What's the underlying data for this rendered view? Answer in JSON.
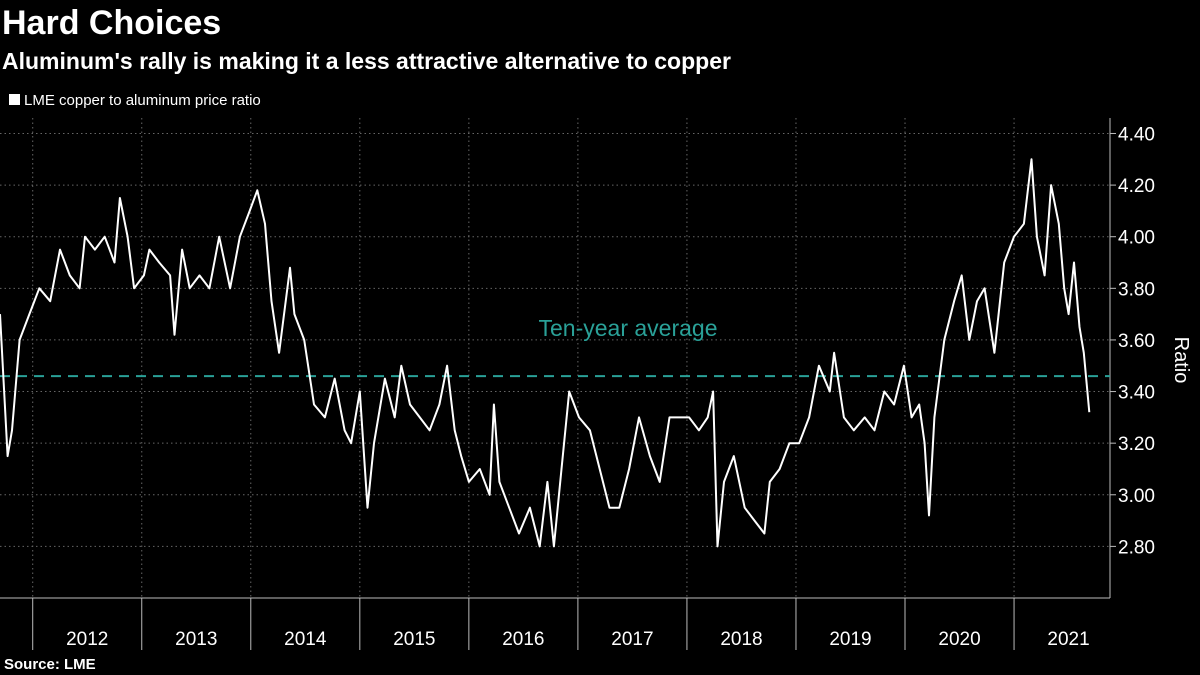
{
  "chart_data": {
    "type": "line",
    "title": "Hard Choices",
    "subtitle": "Aluminum's rally is making it a less attractive alternative to copper",
    "ylabel": "Ratio",
    "source": "Source: LME",
    "x": [
      2011.7,
      2011.77,
      2011.81,
      2011.88,
      2011.97,
      2012.06,
      2012.16,
      2012.25,
      2012.34,
      2012.43,
      2012.48,
      2012.57,
      2012.66,
      2012.75,
      2012.8,
      2012.87,
      2012.93,
      2013.02,
      2013.07,
      2013.16,
      2013.26,
      2013.3,
      2013.37,
      2013.44,
      2013.53,
      2013.62,
      2013.71,
      2013.81,
      2013.9,
      2013.99,
      2014.06,
      2014.13,
      2014.19,
      2014.26,
      2014.36,
      2014.4,
      2014.49,
      2014.58,
      2014.68,
      2014.77,
      2014.86,
      2014.92,
      2015.0,
      2015.07,
      2015.13,
      2015.23,
      2015.32,
      2015.38,
      2015.46,
      2015.55,
      2015.64,
      2015.73,
      2015.8,
      2015.87,
      2015.93,
      2016.0,
      2016.1,
      2016.19,
      2016.23,
      2016.28,
      2016.37,
      2016.46,
      2016.56,
      2016.65,
      2016.72,
      2016.78,
      2016.85,
      2016.92,
      2017.01,
      2017.11,
      2017.2,
      2017.29,
      2017.38,
      2017.47,
      2017.56,
      2017.66,
      2017.75,
      2017.84,
      2017.93,
      2018.02,
      2018.11,
      2018.19,
      2018.24,
      2018.28,
      2018.34,
      2018.43,
      2018.53,
      2018.62,
      2018.71,
      2018.76,
      2018.85,
      2018.94,
      2019.03,
      2019.12,
      2019.21,
      2019.31,
      2019.35,
      2019.44,
      2019.53,
      2019.63,
      2019.72,
      2019.81,
      2019.9,
      2019.99,
      2020.06,
      2020.13,
      2020.18,
      2020.22,
      2020.27,
      2020.36,
      2020.45,
      2020.52,
      2020.59,
      2020.66,
      2020.73,
      2020.82,
      2020.91,
      2021.0,
      2021.09,
      2021.16,
      2021.21,
      2021.28,
      2021.34,
      2021.41,
      2021.46,
      2021.5,
      2021.55,
      2021.6,
      2021.64,
      2021.69
    ],
    "series": [
      {
        "name": "LME copper to aluminum price ratio",
        "color": "#ffffff",
        "values": [
          3.7,
          3.15,
          3.25,
          3.6,
          3.7,
          3.8,
          3.75,
          3.95,
          3.85,
          3.8,
          4.0,
          3.95,
          4.0,
          3.9,
          4.15,
          4.0,
          3.8,
          3.85,
          3.95,
          3.9,
          3.85,
          3.62,
          3.95,
          3.8,
          3.85,
          3.8,
          4.0,
          3.8,
          4.0,
          4.1,
          4.18,
          4.05,
          3.75,
          3.55,
          3.88,
          3.7,
          3.6,
          3.35,
          3.3,
          3.45,
          3.25,
          3.2,
          3.4,
          2.95,
          3.2,
          3.45,
          3.3,
          3.5,
          3.35,
          3.3,
          3.25,
          3.35,
          3.5,
          3.25,
          3.15,
          3.05,
          3.1,
          3.0,
          3.35,
          3.05,
          2.95,
          2.85,
          2.95,
          2.8,
          3.05,
          2.8,
          3.1,
          3.4,
          3.3,
          3.25,
          3.1,
          2.95,
          2.95,
          3.1,
          3.3,
          3.15,
          3.05,
          3.3,
          3.3,
          3.3,
          3.25,
          3.3,
          3.4,
          2.8,
          3.05,
          3.15,
          2.95,
          2.9,
          2.85,
          3.05,
          3.1,
          3.2,
          3.2,
          3.3,
          3.5,
          3.4,
          3.55,
          3.3,
          3.25,
          3.3,
          3.25,
          3.4,
          3.35,
          3.5,
          3.3,
          3.35,
          3.2,
          2.92,
          3.3,
          3.6,
          3.75,
          3.85,
          3.6,
          3.75,
          3.8,
          3.55,
          3.9,
          4.0,
          4.05,
          4.3,
          4.0,
          3.85,
          4.2,
          4.05,
          3.8,
          3.7,
          3.9,
          3.65,
          3.55,
          3.32
        ]
      }
    ],
    "reference": {
      "value": 3.46,
      "label": "Ten-year average",
      "color": "#2aa198"
    },
    "xlim": [
      2011.7,
      2021.88
    ],
    "xticks": [
      2012,
      2013,
      2014,
      2015,
      2016,
      2017,
      2018,
      2019,
      2020,
      2021
    ],
    "ylim": [
      2.6,
      4.46
    ],
    "yticks": [
      {
        "value": 2.8,
        "label": "2.80"
      },
      {
        "value": 3.0,
        "label": "3.00"
      },
      {
        "value": 3.2,
        "label": "3.20"
      },
      {
        "value": 3.4,
        "label": "3.40"
      },
      {
        "value": 3.6,
        "label": "3.60"
      },
      {
        "value": 3.8,
        "label": "3.80"
      },
      {
        "value": 4.0,
        "label": "4.00"
      },
      {
        "value": 4.2,
        "label": "4.20"
      },
      {
        "value": 4.4,
        "label": "4.40"
      }
    ],
    "grid": true
  }
}
